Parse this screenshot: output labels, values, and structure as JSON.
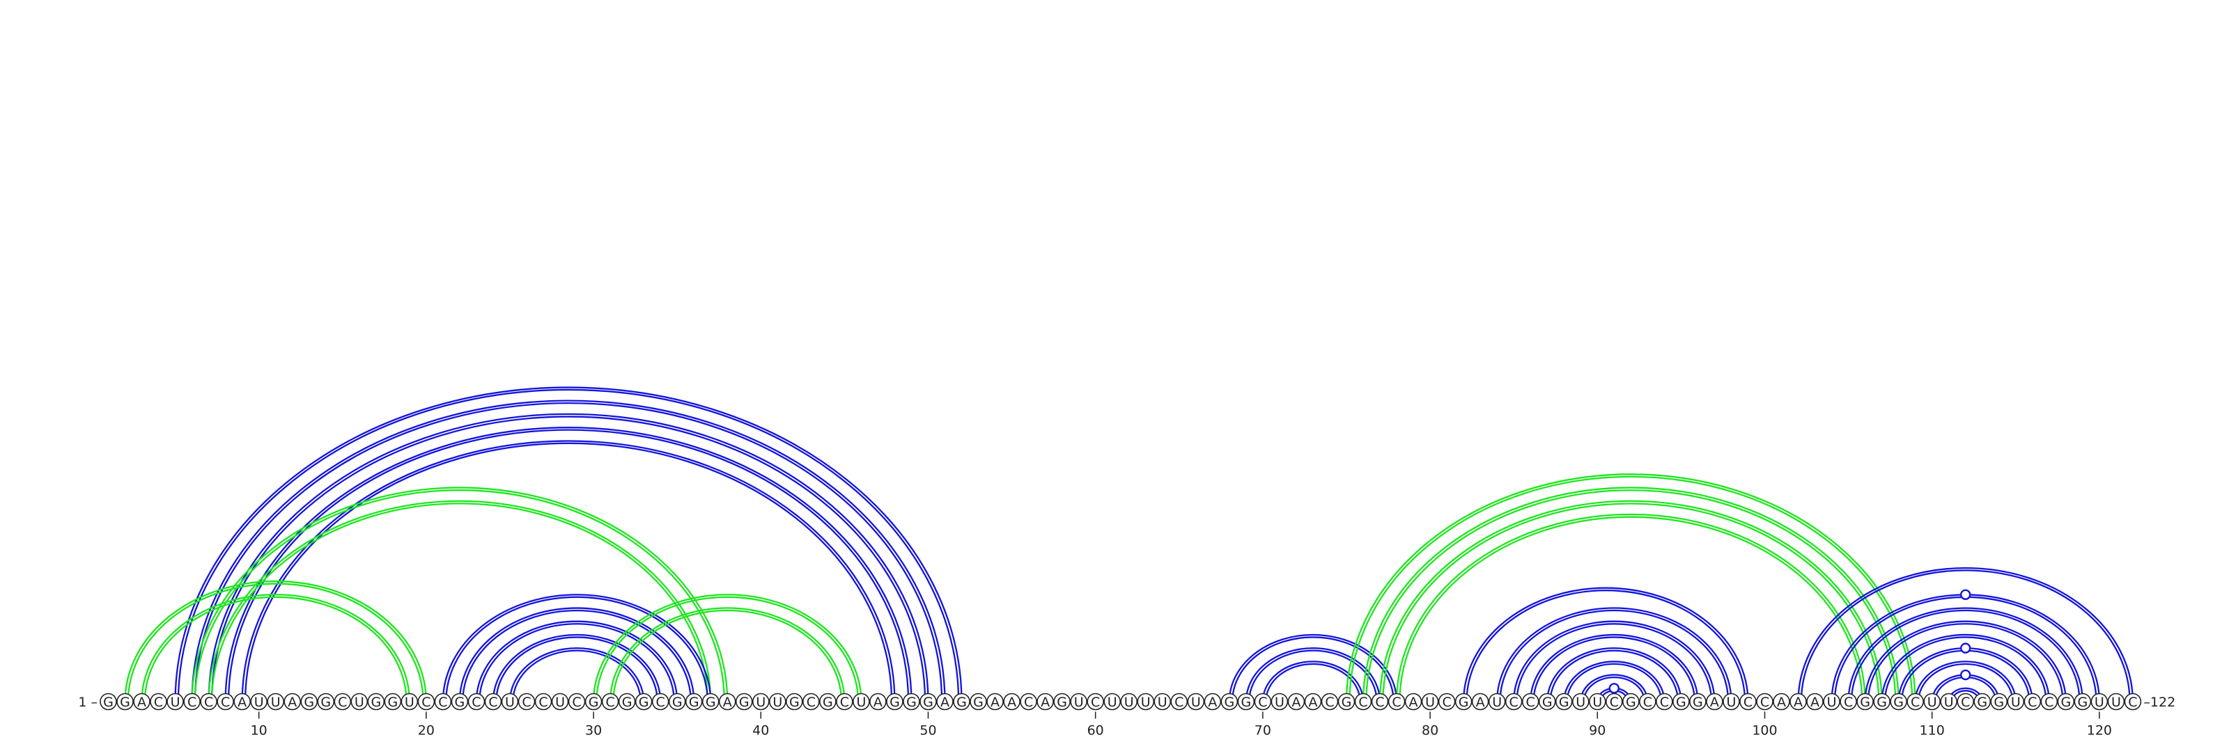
{
  "sequence": "GGACUCCCAUUAGGCUGGUCCGCCUCCUCGCGGCGGGAGUUGCGCUAGGGAGGAACAGUCUUUUCUAGGCUAACGCCCAUCGAUCCGGUUCGCCGGAUCCAAAUCGGGCUUCGGUCCGGUUC",
  "start_label": "1 –",
  "end_label": "–122",
  "ticks": [
    "10",
    "20",
    "30",
    "40",
    "50",
    "60",
    "70",
    "80",
    "90",
    "100",
    "110",
    "120"
  ],
  "colors": {
    "blue": "#1414dc",
    "green": "#1ee61e",
    "outline": "#222222"
  },
  "helices": [
    {
      "color": "blue",
      "pairs": [
        [
          5,
          52
        ],
        [
          6,
          51
        ],
        [
          7,
          50
        ],
        [
          8,
          49
        ],
        [
          9,
          48
        ]
      ]
    },
    {
      "color": "green",
      "pairs": [
        [
          2,
          20
        ],
        [
          3,
          19
        ]
      ]
    },
    {
      "color": "green",
      "pairs": [
        [
          6,
          38
        ],
        [
          7,
          37
        ]
      ]
    },
    {
      "color": "blue",
      "pairs": [
        [
          21,
          37
        ],
        [
          22,
          36
        ],
        [
          23,
          35
        ],
        [
          24,
          34
        ],
        [
          25,
          33
        ]
      ]
    },
    {
      "color": "green",
      "pairs": [
        [
          30,
          46
        ],
        [
          31,
          45
        ]
      ]
    },
    {
      "color": "blue",
      "pairs": [
        [
          68,
          78
        ],
        [
          69,
          77
        ],
        [
          70,
          76
        ]
      ]
    },
    {
      "color": "green",
      "pairs": [
        [
          75,
          109
        ],
        [
          76,
          108
        ],
        [
          77,
          107
        ],
        [
          78,
          106
        ]
      ]
    },
    {
      "color": "blue",
      "pairs": [
        [
          82,
          99
        ],
        [
          84,
          98
        ],
        [
          85,
          97
        ],
        [
          86,
          96
        ],
        [
          87,
          95
        ],
        [
          88,
          94
        ],
        [
          89,
          93
        ],
        [
          90,
          92
        ]
      ]
    },
    {
      "color": "blue",
      "pairs": [
        [
          102,
          122
        ],
        [
          104,
          120
        ],
        [
          105,
          119
        ],
        [
          106,
          118
        ],
        [
          107,
          117
        ],
        [
          108,
          116
        ],
        [
          109,
          115
        ],
        [
          110,
          114
        ],
        [
          111,
          113
        ]
      ]
    }
  ],
  "bulges": [
    [
      90,
      92
    ],
    [
      104,
      120
    ],
    [
      108,
      116
    ],
    [
      110,
      114
    ]
  ]
}
